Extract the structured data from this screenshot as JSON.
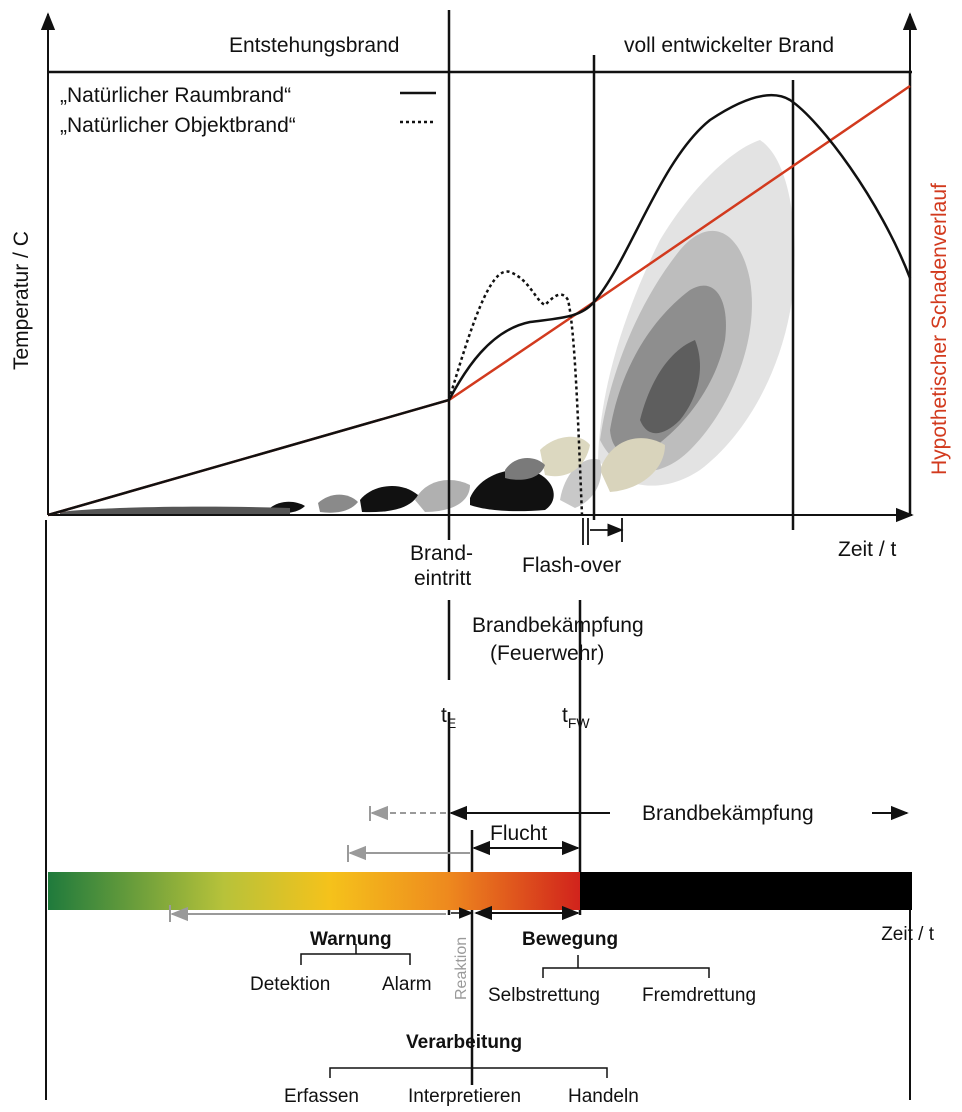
{
  "phases": {
    "entstehung": "Entstehungsbrand",
    "voll": "voll entwickelter Brand"
  },
  "legend": {
    "raum": "„Natürlicher Raumbrand“",
    "objekt": "„Natürlicher Objektbrand“"
  },
  "axes": {
    "y": "Temperatur / C",
    "x": "Zeit / t",
    "x2": "Zeit / t",
    "hypo": "Hypothetischer Schadenverlauf"
  },
  "events": {
    "brand_1": "Brand-",
    "brand_2": "eintritt",
    "flashover": "Flash-over",
    "bek_1": "Brandbekämpfung",
    "bek_2": "(Feuerwehr)",
    "te": "t",
    "te_sub": "E",
    "tfw": "t",
    "tfw_sub": "FW"
  },
  "timeline": {
    "brandbekaempfung": "Brandbekämpfung",
    "flucht": "Flucht",
    "warnung": "Warnung",
    "detektion": "Detektion",
    "alarm": "Alarm",
    "reaktion": "Reaktion",
    "bewegung": "Bewegung",
    "selbst": "Selbstrettung",
    "fremd": "Fremdrettung",
    "verarbeitung": "Verarbeitung",
    "erfassen": "Erfassen",
    "interpretieren": "Interpretieren",
    "handeln": "Handeln"
  },
  "colors": {
    "axis": "#111111",
    "hypothetical": "#d23a1e",
    "bar_start": "#1f7a3c",
    "bar_mid": "#f5c21b",
    "bar_red": "#d1231c",
    "bar_end": "#000000",
    "gray_arrow": "#9a9a9a"
  }
}
